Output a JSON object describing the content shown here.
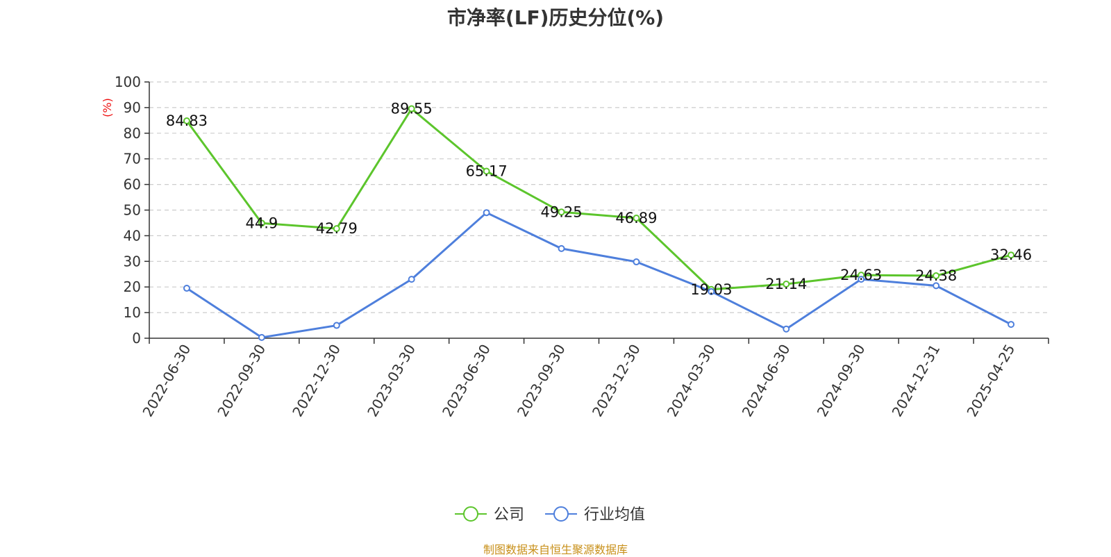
{
  "chart_data": {
    "type": "line",
    "title": "市净率(LF)历史分位(%)",
    "ylabel": "(%)",
    "xlabel": "",
    "ylim": [
      0,
      100
    ],
    "yticks": [
      0,
      10,
      20,
      30,
      40,
      50,
      60,
      70,
      80,
      90,
      100
    ],
    "grid": true,
    "legend_position": "bottom",
    "categories": [
      "2022-06-30",
      "2022-09-30",
      "2022-12-30",
      "2023-03-30",
      "2023-06-30",
      "2023-09-30",
      "2023-12-30",
      "2024-03-30",
      "2024-06-30",
      "2024-09-30",
      "2024-12-31",
      "2025-04-25"
    ],
    "series": [
      {
        "name": "公司",
        "color": "#5cc52c",
        "values": [
          84.83,
          44.9,
          42.79,
          89.55,
          65.17,
          49.25,
          46.89,
          19.03,
          21.14,
          24.63,
          24.38,
          32.46
        ],
        "data_labels": [
          "84.83",
          "44.9",
          "42.79",
          "89.55",
          "65.17",
          "49.25",
          "46.89",
          "19.03",
          "21.14",
          "24.63",
          "24.38",
          "32.46"
        ]
      },
      {
        "name": "行业均值",
        "color": "#4e7fdc",
        "values": [
          19.5,
          0.3,
          5,
          23,
          49,
          35,
          29.8,
          18.2,
          3.6,
          23,
          20.5,
          5.4
        ]
      }
    ]
  },
  "footer": {
    "source": "制图数据来自恒生聚源数据库"
  }
}
